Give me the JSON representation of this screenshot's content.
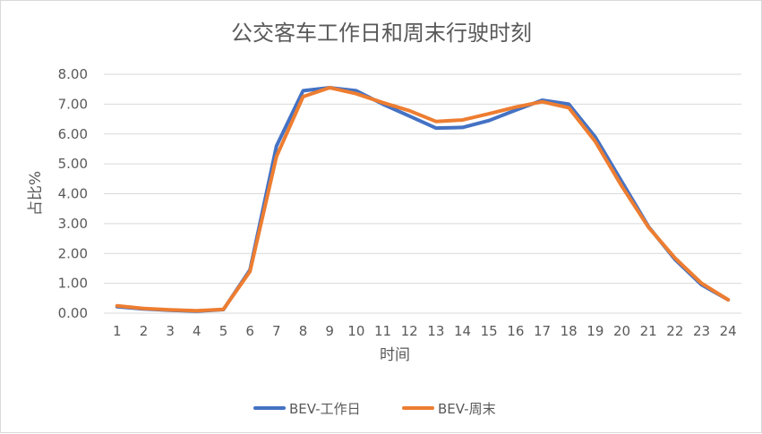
{
  "chart_data": {
    "type": "line",
    "title": "公交客车工作日和周末行驶时刻",
    "xlabel": "时间",
    "ylabel": "占比%",
    "categories": [
      "1",
      "2",
      "3",
      "4",
      "5",
      "6",
      "7",
      "8",
      "9",
      "10",
      "11",
      "12",
      "13",
      "14",
      "15",
      "16",
      "17",
      "18",
      "19",
      "20",
      "21",
      "22",
      "23",
      "24"
    ],
    "yticks": [
      "0.00",
      "1.00",
      "2.00",
      "3.00",
      "4.00",
      "5.00",
      "6.00",
      "7.00",
      "8.00"
    ],
    "ylim": [
      0,
      8
    ],
    "grid": true,
    "legend_position": "bottom",
    "series": [
      {
        "name": "BEV-工作日",
        "color": "#4472C4",
        "values": [
          0.22,
          0.14,
          0.1,
          0.07,
          0.12,
          1.45,
          5.6,
          7.45,
          7.55,
          7.45,
          7.0,
          6.6,
          6.2,
          6.22,
          6.45,
          6.8,
          7.13,
          7.0,
          5.9,
          4.4,
          2.9,
          1.8,
          0.95,
          0.45
        ]
      },
      {
        "name": "BEV-周末",
        "color": "#ED7D31",
        "values": [
          0.25,
          0.16,
          0.11,
          0.08,
          0.13,
          1.4,
          5.25,
          7.25,
          7.55,
          7.35,
          7.05,
          6.78,
          6.42,
          6.47,
          6.68,
          6.9,
          7.08,
          6.88,
          5.75,
          4.25,
          2.88,
          1.85,
          1.0,
          0.45
        ]
      }
    ]
  }
}
